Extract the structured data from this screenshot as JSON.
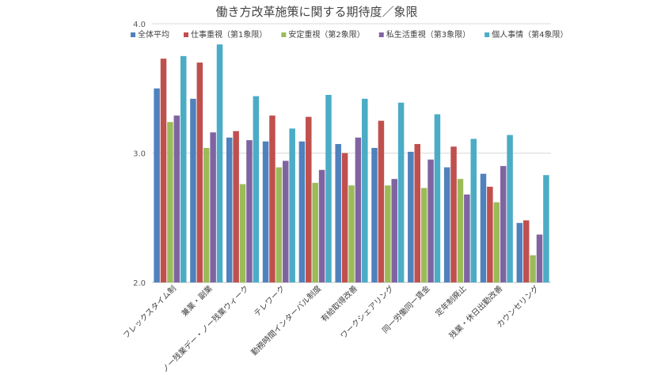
{
  "chart_data": {
    "type": "bar",
    "title": "働き方改革施策に関する期待度／象限",
    "categories": [
      "フレックスタイム制",
      "兼業・副業",
      "ノー残業デー・ノー残業ウィーク",
      "テレワーク",
      "勤務時間インターバル制度",
      "有給取得改善",
      "ワークシェアリング",
      "同一労働同一賃金",
      "定年制廃止",
      "残業・休日出勤改善",
      "カウンセリング"
    ],
    "series": [
      {
        "name": "全体平均",
        "color": "#4f81bd",
        "values": [
          3.5,
          3.42,
          3.12,
          3.09,
          3.09,
          3.07,
          3.04,
          3.01,
          2.89,
          2.84,
          2.46
        ]
      },
      {
        "name": "仕事重視（第1象限）",
        "color": "#c0504d",
        "values": [
          3.73,
          3.7,
          3.17,
          3.29,
          3.28,
          3.0,
          3.25,
          3.07,
          3.05,
          2.74,
          2.48
        ]
      },
      {
        "name": "安定重視（第2象限）",
        "color": "#9bbb59",
        "values": [
          3.24,
          3.04,
          2.76,
          2.89,
          2.77,
          2.75,
          2.75,
          2.73,
          2.8,
          2.62,
          2.21
        ]
      },
      {
        "name": "私生活重視（第3象限）",
        "color": "#8064a2",
        "values": [
          3.29,
          3.16,
          3.1,
          2.94,
          2.87,
          3.12,
          2.8,
          2.95,
          2.68,
          2.9,
          2.37
        ]
      },
      {
        "name": "個人事情（第4象限）",
        "color": "#4bacc6",
        "values": [
          3.75,
          3.84,
          3.44,
          3.19,
          3.45,
          3.42,
          3.39,
          3.3,
          3.11,
          3.14,
          2.83
        ]
      }
    ],
    "y_ticks": [
      "4.0",
      "3.0",
      "2.0"
    ],
    "ylim": [
      2.0,
      4.0
    ],
    "grid": true,
    "legend": "top"
  }
}
